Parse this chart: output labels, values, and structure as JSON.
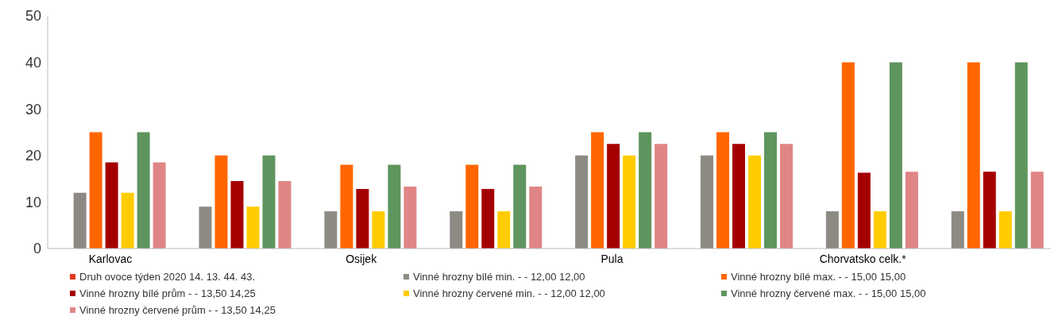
{
  "chart_data": {
    "type": "bar",
    "categories": [
      "Karlovac",
      null,
      "Osijek",
      null,
      "Pula",
      null,
      "Chorvatsko celk.*",
      null
    ],
    "series": [
      {
        "name": "Druh ovoce týden 2020 14. 13. 44. 43.",
        "color": "#e03a1e",
        "values": [
          null,
          null,
          null,
          null,
          null,
          null,
          null,
          null
        ]
      },
      {
        "name": "Vinné hrozny bílé min. - - 12,00 12,00",
        "color": "#8c8a82",
        "values": [
          12,
          9,
          8,
          8,
          20,
          20,
          8,
          8
        ]
      },
      {
        "name": "Vinné hrozny bílé max. - - 15,00 15,00",
        "color": "#ff6600",
        "values": [
          25,
          20,
          18,
          18,
          25,
          25,
          40,
          40
        ]
      },
      {
        "name": "Vinné hrozny bílé prům - - 13,50 14,25",
        "color": "#a50000",
        "values": [
          18.5,
          14.5,
          12.8,
          12.8,
          22.5,
          22.5,
          16.3,
          16.5
        ]
      },
      {
        "name": "Vinné hrozny červené min. - - 12,00 12,00",
        "color": "#ffcc00",
        "values": [
          12,
          9,
          8,
          8,
          20,
          20,
          8,
          8
        ]
      },
      {
        "name": "Vinné hrozny červené max. - - 15,00 15,00",
        "color": "#5e955e",
        "values": [
          25,
          20,
          18,
          18,
          25,
          25,
          40,
          40
        ]
      },
      {
        "name": "Vinné hrozny červené prům - - 13,50 14,25",
        "color": "#e08585",
        "values": [
          18.5,
          14.5,
          13.3,
          13.3,
          22.5,
          22.5,
          16.5,
          16.5
        ]
      }
    ],
    "ylim": [
      0,
      50
    ],
    "yticks": [
      0,
      10,
      20,
      30,
      40,
      50
    ],
    "grid": false,
    "legend": "bottom"
  }
}
